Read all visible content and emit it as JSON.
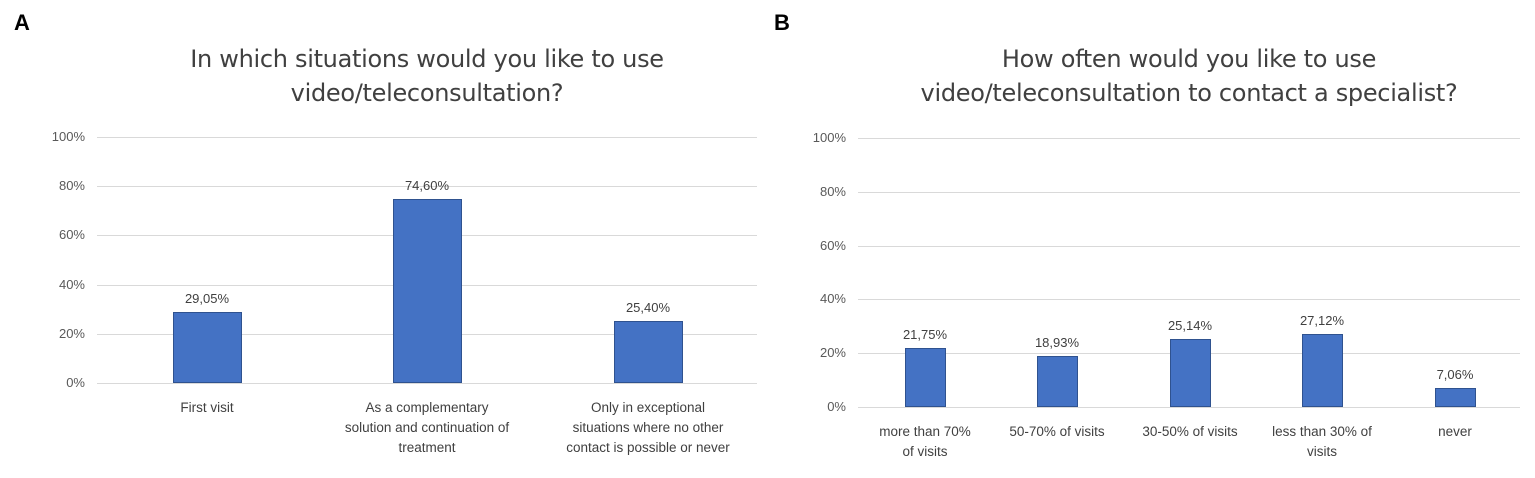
{
  "panels": [
    {
      "letter": "A",
      "title_line1": "In which situations would you like to use",
      "title_line2": "video/teleconsultation?"
    },
    {
      "letter": "B",
      "title_line1": "How often would you like to use",
      "title_line2": "video/teleconsultation to contact a specialist?"
    }
  ],
  "yticks": [
    "100%",
    "80%",
    "60%",
    "40%",
    "20%",
    "0%"
  ],
  "chart_data": [
    {
      "type": "bar",
      "title": "In which situations would you like to use video/teleconsultation?",
      "categories": [
        "First visit",
        "As a complementary solution and continuation of treatment",
        "Only in exceptional situations where no other contact is possible or never"
      ],
      "values": [
        29.05,
        74.6,
        25.4
      ],
      "value_labels": [
        "29,05%",
        "74,60%",
        "25,40%"
      ],
      "xlabel": "",
      "ylabel": "",
      "ylim": [
        0,
        100
      ],
      "yticks": [
        "0%",
        "20%",
        "40%",
        "60%",
        "80%",
        "100%"
      ],
      "grid": true,
      "legend": "none",
      "color": "#4472C4"
    },
    {
      "type": "bar",
      "title": "How often would you like to use video/teleconsultation to contact a specialist?",
      "categories": [
        "more than 70% of visits",
        "50-70% of visits",
        "30-50% of visits",
        "less than 30% of visits",
        "never"
      ],
      "values": [
        21.75,
        18.93,
        25.14,
        27.12,
        7.06
      ],
      "value_labels": [
        "21,75%",
        "18,93%",
        "25,14%",
        "27,12%",
        "7,06%"
      ],
      "xlabel": "",
      "ylabel": "",
      "ylim": [
        0,
        100
      ],
      "yticks": [
        "0%",
        "20%",
        "40%",
        "60%",
        "80%",
        "100%"
      ],
      "grid": true,
      "legend": "none",
      "color": "#4472C4"
    }
  ],
  "category_lines": {
    "A": [
      [
        "First visit"
      ],
      [
        "As a complementary",
        "solution and continuation of",
        "treatment"
      ],
      [
        "Only in exceptional",
        "situations where no other",
        "contact is possible or never"
      ]
    ],
    "B": [
      [
        "more than 70%",
        "of visits"
      ],
      [
        "50-70% of visits"
      ],
      [
        "30-50% of visits"
      ],
      [
        "less than 30% of",
        "visits"
      ],
      [
        "never"
      ]
    ]
  }
}
